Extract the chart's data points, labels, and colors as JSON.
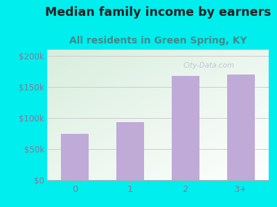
{
  "title": "Median family income by earners",
  "subtitle": "All residents in Green Spring, KY",
  "categories": [
    "0",
    "1",
    "2",
    "3+"
  ],
  "values": [
    75000,
    93000,
    168000,
    170000
  ],
  "bar_color": "#c0aad8",
  "outer_bg": "#00EEEE",
  "chart_bg_topleft": "#d8eedd",
  "chart_bg_bottomright": "#ffffff",
  "title_fontsize": 12.5,
  "subtitle_fontsize": 10,
  "yticks": [
    0,
    50000,
    100000,
    150000,
    200000
  ],
  "ytick_labels": [
    "$0",
    "$50k",
    "$100k",
    "$150k",
    "$200k"
  ],
  "ylim": [
    0,
    210000
  ],
  "title_color": "#222222",
  "subtitle_color": "#448888",
  "tick_color": "#887799",
  "watermark": "City-Data.com"
}
